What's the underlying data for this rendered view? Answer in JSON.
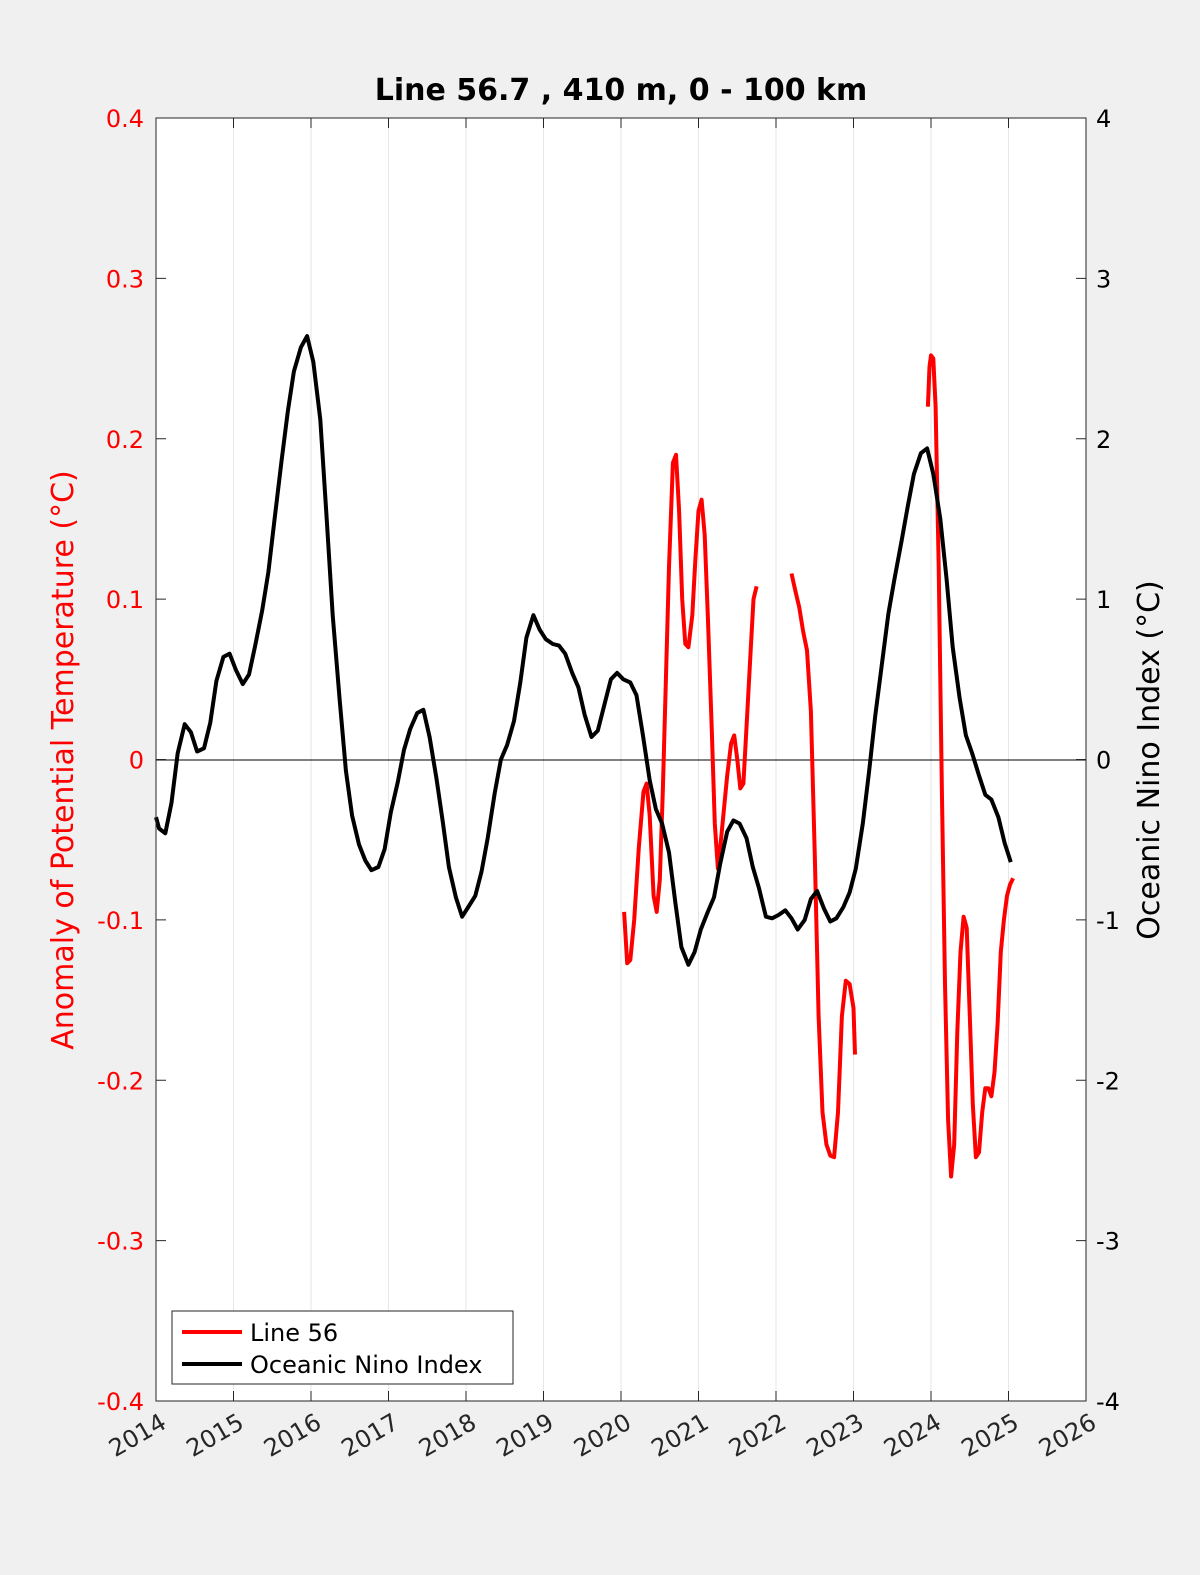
{
  "chart_data": {
    "type": "line",
    "title": "Line 56.7 , 410 m, 0 - 100 km",
    "xlabel": "",
    "ylabel_left": "Anomaly of Potential Temperature (°C)",
    "ylabel_right": "Oceanic Nino Index (°C)",
    "xlim": [
      2014,
      2026
    ],
    "ylim_left": [
      -0.4,
      0.4
    ],
    "ylim_right": [
      -4,
      4
    ],
    "x_ticks": [
      "2014",
      "2015",
      "2016",
      "2017",
      "2018",
      "2019",
      "2020",
      "2021",
      "2022",
      "2023",
      "2024",
      "2025",
      "2026"
    ],
    "y_left_ticks": [
      "-0.4",
      "-0.3",
      "-0.2",
      "-0.1",
      "0",
      "0.1",
      "0.2",
      "0.3",
      "0.4"
    ],
    "y_right_ticks": [
      "-4",
      "-3",
      "-2",
      "-1",
      "0",
      "1",
      "2",
      "3",
      "4"
    ],
    "grid": "vertical",
    "zero_line": true,
    "legend_position": "bottom-left",
    "colors": {
      "line56": "#ff0000",
      "oni": "#000000"
    },
    "series": [
      {
        "name": "Line 56",
        "axis": "left",
        "color": "#ff0000",
        "segments": [
          [
            [
              2020.04,
              -0.095
            ],
            [
              2020.08,
              -0.127
            ],
            [
              2020.12,
              -0.125
            ],
            [
              2020.17,
              -0.1
            ],
            [
              2020.23,
              -0.055
            ],
            [
              2020.29,
              -0.02
            ],
            [
              2020.33,
              -0.015
            ],
            [
              2020.37,
              -0.035
            ],
            [
              2020.42,
              -0.085
            ],
            [
              2020.46,
              -0.095
            ],
            [
              2020.5,
              -0.075
            ],
            [
              2020.54,
              -0.02
            ],
            [
              2020.58,
              0.05
            ],
            [
              2020.62,
              0.12
            ],
            [
              2020.67,
              0.185
            ],
            [
              2020.71,
              0.19
            ],
            [
              2020.75,
              0.155
            ],
            [
              2020.79,
              0.1
            ],
            [
              2020.83,
              0.072
            ],
            [
              2020.87,
              0.07
            ],
            [
              2020.92,
              0.09
            ],
            [
              2020.96,
              0.125
            ],
            [
              2021.0,
              0.155
            ],
            [
              2021.04,
              0.162
            ],
            [
              2021.08,
              0.14
            ],
            [
              2021.12,
              0.09
            ],
            [
              2021.17,
              0.02
            ],
            [
              2021.21,
              -0.04
            ],
            [
              2021.25,
              -0.068
            ],
            [
              2021.29,
              -0.05
            ],
            [
              2021.33,
              -0.03
            ],
            [
              2021.37,
              -0.01
            ],
            [
              2021.42,
              0.01
            ],
            [
              2021.46,
              0.015
            ],
            [
              2021.5,
              0.0
            ],
            [
              2021.54,
              -0.018
            ],
            [
              2021.58,
              -0.015
            ],
            [
              2021.62,
              0.02
            ],
            [
              2021.67,
              0.065
            ],
            [
              2021.71,
              0.1
            ],
            [
              2021.75,
              0.108
            ]
          ],
          [
            [
              2022.2,
              0.116
            ],
            [
              2022.25,
              0.105
            ],
            [
              2022.3,
              0.095
            ],
            [
              2022.35,
              0.08
            ],
            [
              2022.4,
              0.068
            ],
            [
              2022.45,
              0.03
            ],
            [
              2022.5,
              -0.06
            ],
            [
              2022.55,
              -0.16
            ],
            [
              2022.6,
              -0.22
            ],
            [
              2022.65,
              -0.24
            ],
            [
              2022.7,
              -0.247
            ],
            [
              2022.75,
              -0.248
            ],
            [
              2022.8,
              -0.22
            ],
            [
              2022.85,
              -0.16
            ],
            [
              2022.9,
              -0.138
            ],
            [
              2022.95,
              -0.14
            ],
            [
              2023.0,
              -0.155
            ],
            [
              2023.02,
              -0.184
            ]
          ],
          [
            [
              2023.96,
              0.22
            ],
            [
              2023.98,
              0.245
            ],
            [
              2024.0,
              0.252
            ],
            [
              2024.03,
              0.25
            ],
            [
              2024.06,
              0.22
            ],
            [
              2024.1,
              0.12
            ],
            [
              2024.14,
              -0.02
            ],
            [
              2024.18,
              -0.14
            ],
            [
              2024.22,
              -0.225
            ],
            [
              2024.26,
              -0.26
            ],
            [
              2024.3,
              -0.24
            ],
            [
              2024.34,
              -0.17
            ],
            [
              2024.38,
              -0.12
            ],
            [
              2024.42,
              -0.098
            ],
            [
              2024.46,
              -0.105
            ],
            [
              2024.5,
              -0.16
            ],
            [
              2024.54,
              -0.215
            ],
            [
              2024.58,
              -0.248
            ],
            [
              2024.62,
              -0.245
            ],
            [
              2024.66,
              -0.22
            ],
            [
              2024.7,
              -0.205
            ],
            [
              2024.74,
              -0.205
            ],
            [
              2024.78,
              -0.21
            ],
            [
              2024.82,
              -0.195
            ],
            [
              2024.86,
              -0.165
            ],
            [
              2024.9,
              -0.12
            ],
            [
              2024.94,
              -0.1
            ],
            [
              2024.98,
              -0.085
            ],
            [
              2025.02,
              -0.078
            ],
            [
              2025.06,
              -0.074
            ]
          ]
        ]
      },
      {
        "name": "Oceanic Nino Index",
        "axis": "right",
        "color": "#000000",
        "values": [
          [
            2014.0,
            -0.36
          ],
          [
            2014.04,
            -0.43
          ],
          [
            2014.12,
            -0.46
          ],
          [
            2014.2,
            -0.27
          ],
          [
            2014.28,
            0.04
          ],
          [
            2014.37,
            0.22
          ],
          [
            2014.45,
            0.17
          ],
          [
            2014.53,
            0.05
          ],
          [
            2014.62,
            0.07
          ],
          [
            2014.7,
            0.23
          ],
          [
            2014.78,
            0.49
          ],
          [
            2014.87,
            0.64
          ],
          [
            2014.95,
            0.66
          ],
          [
            2015.03,
            0.56
          ],
          [
            2015.12,
            0.47
          ],
          [
            2015.2,
            0.53
          ],
          [
            2015.28,
            0.71
          ],
          [
            2015.37,
            0.93
          ],
          [
            2015.45,
            1.17
          ],
          [
            2015.53,
            1.5
          ],
          [
            2015.62,
            1.86
          ],
          [
            2015.7,
            2.17
          ],
          [
            2015.78,
            2.42
          ],
          [
            2015.87,
            2.57
          ],
          [
            2015.95,
            2.64
          ],
          [
            2016.03,
            2.48
          ],
          [
            2016.12,
            2.12
          ],
          [
            2016.2,
            1.52
          ],
          [
            2016.28,
            0.9
          ],
          [
            2016.37,
            0.37
          ],
          [
            2016.45,
            -0.07
          ],
          [
            2016.53,
            -0.35
          ],
          [
            2016.62,
            -0.53
          ],
          [
            2016.7,
            -0.63
          ],
          [
            2016.78,
            -0.69
          ],
          [
            2016.87,
            -0.67
          ],
          [
            2016.95,
            -0.56
          ],
          [
            2017.03,
            -0.33
          ],
          [
            2017.12,
            -0.14
          ],
          [
            2017.2,
            0.06
          ],
          [
            2017.28,
            0.19
          ],
          [
            2017.37,
            0.29
          ],
          [
            2017.45,
            0.31
          ],
          [
            2017.53,
            0.14
          ],
          [
            2017.62,
            -0.12
          ],
          [
            2017.7,
            -0.39
          ],
          [
            2017.78,
            -0.67
          ],
          [
            2017.87,
            -0.86
          ],
          [
            2017.95,
            -0.98
          ],
          [
            2018.03,
            -0.92
          ],
          [
            2018.12,
            -0.85
          ],
          [
            2018.2,
            -0.7
          ],
          [
            2018.28,
            -0.49
          ],
          [
            2018.37,
            -0.21
          ],
          [
            2018.45,
            0.0
          ],
          [
            2018.53,
            0.09
          ],
          [
            2018.62,
            0.24
          ],
          [
            2018.7,
            0.48
          ],
          [
            2018.78,
            0.76
          ],
          [
            2018.87,
            0.9
          ],
          [
            2018.95,
            0.81
          ],
          [
            2019.03,
            0.75
          ],
          [
            2019.12,
            0.72
          ],
          [
            2019.2,
            0.71
          ],
          [
            2019.28,
            0.66
          ],
          [
            2019.37,
            0.54
          ],
          [
            2019.45,
            0.45
          ],
          [
            2019.53,
            0.28
          ],
          [
            2019.62,
            0.14
          ],
          [
            2019.7,
            0.18
          ],
          [
            2019.78,
            0.33
          ],
          [
            2019.87,
            0.5
          ],
          [
            2019.95,
            0.54
          ],
          [
            2020.03,
            0.5
          ],
          [
            2020.12,
            0.48
          ],
          [
            2020.2,
            0.4
          ],
          [
            2020.28,
            0.16
          ],
          [
            2020.37,
            -0.13
          ],
          [
            2020.45,
            -0.31
          ],
          [
            2020.53,
            -0.4
          ],
          [
            2020.62,
            -0.58
          ],
          [
            2020.7,
            -0.89
          ],
          [
            2020.78,
            -1.17
          ],
          [
            2020.87,
            -1.28
          ],
          [
            2020.95,
            -1.2
          ],
          [
            2021.03,
            -1.06
          ],
          [
            2021.12,
            -0.95
          ],
          [
            2021.2,
            -0.86
          ],
          [
            2021.28,
            -0.65
          ],
          [
            2021.37,
            -0.45
          ],
          [
            2021.45,
            -0.38
          ],
          [
            2021.53,
            -0.4
          ],
          [
            2021.62,
            -0.49
          ],
          [
            2021.7,
            -0.67
          ],
          [
            2021.78,
            -0.8
          ],
          [
            2021.87,
            -0.98
          ],
          [
            2021.95,
            -0.99
          ],
          [
            2022.03,
            -0.97
          ],
          [
            2022.12,
            -0.94
          ],
          [
            2022.2,
            -0.99
          ],
          [
            2022.28,
            -1.06
          ],
          [
            2022.37,
            -1.0
          ],
          [
            2022.45,
            -0.87
          ],
          [
            2022.53,
            -0.82
          ],
          [
            2022.62,
            -0.93
          ],
          [
            2022.7,
            -1.01
          ],
          [
            2022.78,
            -0.99
          ],
          [
            2022.87,
            -0.92
          ],
          [
            2022.95,
            -0.83
          ],
          [
            2023.03,
            -0.68
          ],
          [
            2023.12,
            -0.4
          ],
          [
            2023.2,
            -0.08
          ],
          [
            2023.28,
            0.27
          ],
          [
            2023.37,
            0.61
          ],
          [
            2023.45,
            0.91
          ],
          [
            2023.53,
            1.13
          ],
          [
            2023.62,
            1.36
          ],
          [
            2023.7,
            1.58
          ],
          [
            2023.78,
            1.78
          ],
          [
            2023.87,
            1.91
          ],
          [
            2023.95,
            1.94
          ],
          [
            2024.03,
            1.78
          ],
          [
            2024.12,
            1.5
          ],
          [
            2024.2,
            1.13
          ],
          [
            2024.28,
            0.7
          ],
          [
            2024.37,
            0.38
          ],
          [
            2024.45,
            0.15
          ],
          [
            2024.53,
            0.04
          ],
          [
            2024.62,
            -0.1
          ],
          [
            2024.7,
            -0.22
          ],
          [
            2024.78,
            -0.25
          ],
          [
            2024.87,
            -0.36
          ],
          [
            2024.95,
            -0.52
          ],
          [
            2025.03,
            -0.64
          ]
        ]
      }
    ]
  },
  "legend": {
    "items": [
      {
        "label": "Line 56",
        "color": "#ff0000"
      },
      {
        "label": "Oceanic Nino Index",
        "color": "#000000"
      }
    ]
  }
}
